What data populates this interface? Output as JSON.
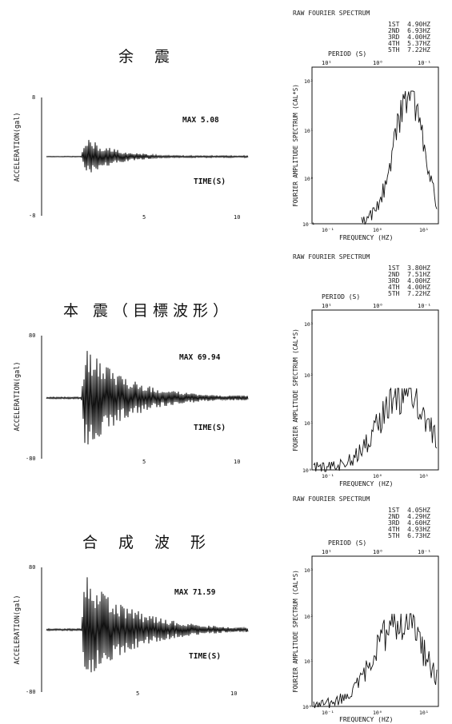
{
  "panels": [
    {
      "title": "余 震",
      "wave": {
        "ylabel": "ACCELERATION(gal)",
        "ytop": "8",
        "ybot": "-8",
        "max_label": "MAX 5.08",
        "time_label": "TIME(S)",
        "xt1": "5",
        "xt2": "10"
      },
      "spectrum": {
        "head": "RAW FOURIER SPECTRUM",
        "peaks": [
          "1ST  4.90HZ",
          "2ND  6.93HZ",
          "3RD  4.00HZ",
          "4TH  5.37HZ",
          "5TH  7.22HZ"
        ],
        "period_label": "PERIOD (S)",
        "ptick1": "10¹",
        "ptick2": "10⁰",
        "ptick3": "10⁻¹",
        "ylabel": "FOURIER AMPLITUDE SPECTRUM (CAL*S)",
        "yt1": "10²",
        "yt2": "10¹",
        "yt3": "10⁰",
        "yt4": "10⁻¹",
        "xt1": "10⁻¹",
        "xt2": "10⁰",
        "xt3": "10¹",
        "xlabel": "FREQUENCY (HZ)"
      }
    },
    {
      "title": "本 震（目標波形）",
      "wave": {
        "ylabel": "ACCELERATION(gal)",
        "ytop": "80",
        "ybot": "-80",
        "max_label": "MAX 69.94",
        "time_label": "TIME(S)",
        "xt1": "5",
        "xt2": "10"
      },
      "spectrum": {
        "head": "RAW FOURIER SPECTRUM",
        "peaks": [
          "1ST  3.80HZ",
          "2ND  7.51HZ",
          "3RD  4.00HZ",
          "4TH  4.00HZ",
          "5TH  7.22HZ"
        ],
        "period_label": "PERIOD (S)",
        "ptick1": "10¹",
        "ptick2": "10⁰",
        "ptick3": "10⁻¹",
        "ylabel": "FOURIER AMPLITUDE SPECTRUM (CAL*S)",
        "yt1": "10³",
        "yt2": "10²",
        "yt3": "10¹",
        "yt4": "10⁰",
        "xt1": "10⁻¹",
        "xt2": "10⁰",
        "xt3": "10¹",
        "xlabel": "FREQUENCY (HZ)"
      }
    },
    {
      "title": "合 成 波 形",
      "wave": {
        "ylabel": "ACCELERATION(gal)",
        "ytop": "80",
        "ybot": "-80",
        "max_label": "MAX 71.59",
        "time_label": "TIME(S)",
        "xt1": "5",
        "xt2": "10"
      },
      "spectrum": {
        "head": "RAW FOURIER SPECTRUM",
        "peaks": [
          "1ST  4.05HZ",
          "2ND  4.29HZ",
          "3RD  4.60HZ",
          "4TH  4.93HZ",
          "5TH  6.73HZ"
        ],
        "period_label": "PERIOD (S)",
        "ptick1": "10¹",
        "ptick2": "10⁰",
        "ptick3": "10⁻¹",
        "ylabel": "FOURIER AMPLITUDE SPECTRUM (CAL*S)",
        "yt1": "10³",
        "yt2": "10²",
        "yt3": "10¹",
        "yt4": "10⁰",
        "xt1": "10⁻¹",
        "xt2": "10⁰",
        "xt3": "10¹",
        "xlabel": "FREQUENCY (HZ)"
      }
    }
  ],
  "chart_data": [
    {
      "type": "line",
      "title": "余 震",
      "xlabel": "TIME(S)",
      "ylabel": "ACCELERATION(gal)",
      "xlim": [
        0,
        10
      ],
      "ylim": [
        -8,
        8
      ],
      "max_abs": 5.08,
      "annotation": "MAX 5.08"
    },
    {
      "type": "line",
      "title": "RAW FOURIER SPECTRUM",
      "xlabel": "FREQUENCY (HZ)",
      "ylabel": "FOURIER AMPLITUDE SPECTRUM (CAL*S)",
      "x_scale": "log",
      "y_scale": "log",
      "peaks_hz": [
        4.9,
        6.93,
        4.0,
        5.37,
        7.22
      ]
    },
    {
      "type": "line",
      "title": "本 震（目標波形）",
      "xlabel": "TIME(S)",
      "ylabel": "ACCELERATION(gal)",
      "xlim": [
        0,
        10
      ],
      "ylim": [
        -80,
        80
      ],
      "max_abs": 69.94,
      "annotation": "MAX 69.94"
    },
    {
      "type": "line",
      "title": "RAW FOURIER SPECTRUM",
      "xlabel": "FREQUENCY (HZ)",
      "ylabel": "FOURIER AMPLITUDE SPECTRUM (CAL*S)",
      "x_scale": "log",
      "y_scale": "log",
      "peaks_hz": [
        3.8,
        7.51,
        4.0,
        4.0,
        7.22
      ]
    },
    {
      "type": "line",
      "title": "合 成 波 形",
      "xlabel": "TIME(S)",
      "ylabel": "ACCELERATION(gal)",
      "xlim": [
        0,
        10
      ],
      "ylim": [
        -80,
        80
      ],
      "max_abs": 71.59,
      "annotation": "MAX 71.59"
    },
    {
      "type": "line",
      "title": "RAW FOURIER SPECTRUM",
      "xlabel": "FREQUENCY (HZ)",
      "ylabel": "FOURIER AMPLITUDE SPECTRUM (CAL*S)",
      "x_scale": "log",
      "y_scale": "log",
      "peaks_hz": [
        4.05,
        4.29,
        4.6,
        4.93,
        6.73
      ]
    }
  ]
}
